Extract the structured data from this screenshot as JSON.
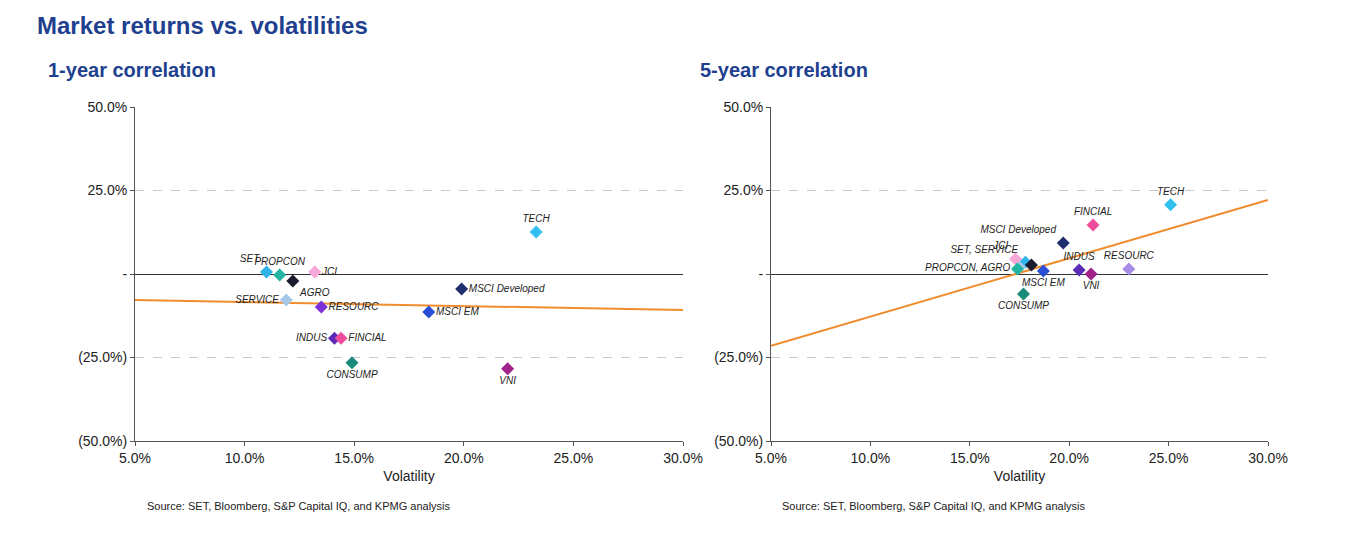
{
  "title": "Market returns vs. volatilities",
  "chart_data": [
    {
      "type": "scatter",
      "title": "1-year correlation",
      "x_label": "Volatility",
      "source": "Source: SET, Bloomberg, S&P Capital IQ, and KPMG analysis",
      "marker": "diamond",
      "grid": true,
      "xlim": [
        5,
        30
      ],
      "xticks": [
        {
          "value": 5,
          "label": "5.0%"
        },
        {
          "value": 10,
          "label": "10.0%"
        },
        {
          "value": 15,
          "label": "15.0%"
        },
        {
          "value": 20,
          "label": "20.0%"
        },
        {
          "value": 25,
          "label": "25.0%"
        },
        {
          "value": 30,
          "label": "30.0%"
        }
      ],
      "ylim": [
        -50,
        50
      ],
      "yticks": [
        {
          "value": -50,
          "label": "(50.0%)"
        },
        {
          "value": -25,
          "label": "(25.0%)"
        },
        {
          "value": 0,
          "label": "-"
        },
        {
          "value": 25,
          "label": "25.0%"
        },
        {
          "value": 50,
          "label": "50.0%"
        }
      ],
      "points": [
        {
          "label": "SET",
          "x": 11.0,
          "y": 0.6,
          "color": "#2fb4e9"
        },
        {
          "label": "PROPCON",
          "x": 11.6,
          "y": -0.3,
          "color": "#22b5a2"
        },
        {
          "label": "JCI",
          "x": 13.2,
          "y": 0.6,
          "color": "#f7a6d8"
        },
        {
          "label": "AGRO",
          "x": 12.2,
          "y": -2.1,
          "color": "#1c1c30"
        },
        {
          "label": "SERVICE",
          "x": 11.9,
          "y": -7.8,
          "color": "#a8c8e8"
        },
        {
          "label": "RESOURC",
          "x": 13.5,
          "y": -9.9,
          "color": "#7b2fd6"
        },
        {
          "label": "INDUS",
          "x": 14.1,
          "y": -19.2,
          "color": "#5b2bb8"
        },
        {
          "label": "FINCIAL",
          "x": 14.4,
          "y": -19.2,
          "color": "#f04c9c"
        },
        {
          "label": "CONSUMP",
          "x": 14.9,
          "y": -26.6,
          "color": "#1a8c7a"
        },
        {
          "label": "MSCI Developed",
          "x": 19.9,
          "y": -4.5,
          "color": "#1f2f6e"
        },
        {
          "label": "MSCI EM",
          "x": 18.4,
          "y": -11.4,
          "color": "#2a4fd6"
        },
        {
          "label": "TECH",
          "x": 23.3,
          "y": 12.6,
          "color": "#33c0f0"
        },
        {
          "label": "VNI",
          "x": 22.0,
          "y": -28.4,
          "color": "#a3218a"
        }
      ],
      "trend_line": {
        "x": [
          5,
          30
        ],
        "y": [
          -7.8,
          -10.8
        ],
        "color": "#f08c2c"
      }
    },
    {
      "type": "scatter",
      "title": "5-year correlation",
      "x_label": "Volatility",
      "source": "Source: SET, Bloomberg, S&P Capital IQ, and KPMG analysis",
      "marker": "diamond",
      "grid": true,
      "xlim": [
        5,
        30
      ],
      "xticks": [
        {
          "value": 5,
          "label": "5.0%"
        },
        {
          "value": 10,
          "label": "10.0%"
        },
        {
          "value": 15,
          "label": "15.0%"
        },
        {
          "value": 20,
          "label": "20.0%"
        },
        {
          "value": 25,
          "label": "25.0%"
        },
        {
          "value": 30,
          "label": "30.0%"
        }
      ],
      "ylim": [
        -50,
        50
      ],
      "yticks": [
        {
          "value": -50,
          "label": "(50.0%)"
        },
        {
          "value": -25,
          "label": "(25.0%)"
        },
        {
          "value": 0,
          "label": "-"
        },
        {
          "value": 25,
          "label": "25.0%"
        },
        {
          "value": 50,
          "label": "50.0%"
        }
      ],
      "points": [
        {
          "label": "TECH",
          "x": 25.1,
          "y": 20.7,
          "color": "#33c0f0"
        },
        {
          "label": "FINCIAL",
          "x": 21.2,
          "y": 14.7,
          "color": "#f04c9c"
        },
        {
          "label": "MSCI Developed",
          "x": 19.7,
          "y": 9.3,
          "color": "#1f2f6e"
        },
        {
          "label": "JCI",
          "x": 17.3,
          "y": 4.5,
          "color": "#f7a6d8"
        },
        {
          "label": "SET, SERVICE",
          "x": 17.8,
          "y": 3.5,
          "color": "#2fb4e9"
        },
        {
          "label": null,
          "x": 17.5,
          "y": 2.0,
          "color": "#a8c8e8"
        },
        {
          "label": "PROPCON, AGRO",
          "x": 17.4,
          "y": 1.5,
          "color": "#22b5a2"
        },
        {
          "label": null,
          "x": 18.1,
          "y": 2.7,
          "color": "#1c1c30"
        },
        {
          "label": "MSCI EM",
          "x": 18.7,
          "y": 0.9,
          "color": "#2a4fd6"
        },
        {
          "label": "CONSUMP",
          "x": 17.7,
          "y": -6.0,
          "color": "#1a8c7a"
        },
        {
          "label": "INDUS",
          "x": 20.5,
          "y": 1.2,
          "color": "#5b2bb8"
        },
        {
          "label": "VNI",
          "x": 21.1,
          "y": 0.0,
          "color": "#a3218a"
        },
        {
          "label": "RESOURC",
          "x": 23.0,
          "y": 1.5,
          "color": "#a98be8"
        }
      ],
      "trend_line": {
        "x": [
          5,
          30
        ],
        "y": [
          -21.5,
          22.2
        ],
        "color": "#f08c2c"
      }
    }
  ]
}
